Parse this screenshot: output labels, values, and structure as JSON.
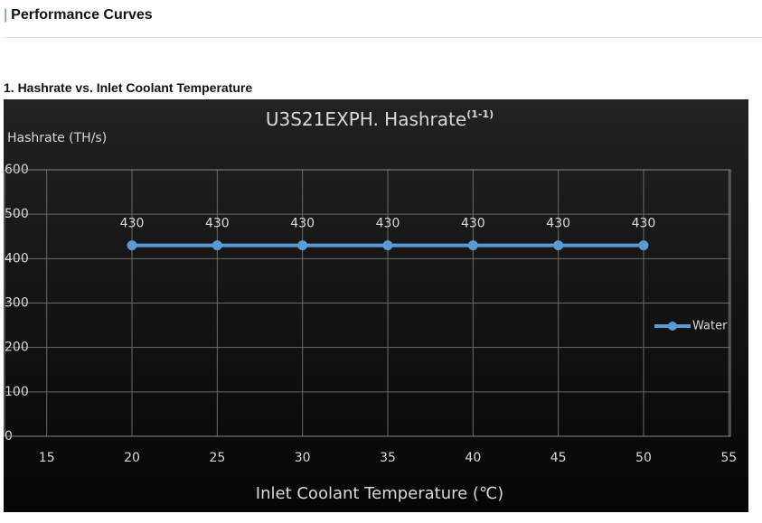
{
  "header": {
    "title": "Performance Curves"
  },
  "section": {
    "title": "1. Hashrate vs. Inlet Coolant Temperature"
  },
  "chart_data": {
    "type": "line",
    "title": "U3S21EXPH. Hashrate",
    "title_note": "(1-1)",
    "y_label": "Hashrate (TH/s)",
    "x_label": "Inlet Coolant Temperature (℃)",
    "x": [
      20,
      25,
      30,
      35,
      40,
      45,
      50
    ],
    "series": [
      {
        "name": "Water",
        "color": "#5b9bd5",
        "values": [
          430,
          430,
          430,
          430,
          430,
          430,
          430
        ]
      }
    ],
    "xlim": [
      15,
      55
    ],
    "xticks": [
      15,
      20,
      25,
      30,
      35,
      40,
      45,
      50,
      55
    ],
    "ylim": [
      0,
      600
    ],
    "yticks": [
      0,
      100,
      200,
      300,
      400,
      500,
      600
    ],
    "grid": true,
    "legend": "right"
  }
}
